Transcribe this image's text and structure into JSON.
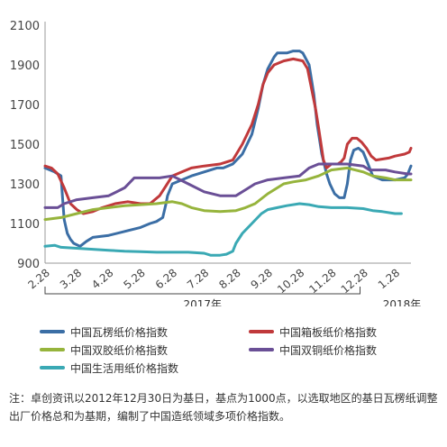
{
  "chart_data": {
    "type": "line",
    "ylim": [
      900,
      2100
    ],
    "yticks": [
      900,
      1100,
      1300,
      1500,
      1700,
      1900,
      2100
    ],
    "x_range": [
      0,
      11.5
    ],
    "x_tick_labels": [
      "2.28",
      "3.28",
      "4.28",
      "5.28",
      "6.28",
      "7.28",
      "8.28",
      "9.28",
      "10.28",
      "11.28",
      "12.28",
      "1.28"
    ],
    "x_tick_positions": [
      0,
      1,
      2,
      3,
      4,
      5,
      6,
      7,
      8,
      9,
      10,
      11
    ],
    "year_labels": [
      {
        "label": "2017年",
        "start": 0,
        "end": 9.9
      },
      {
        "label": "2018年",
        "start": 10.1,
        "end": 11.5
      }
    ],
    "grid": false,
    "legend_position": "bottom",
    "series": [
      {
        "name": "中国瓦楞纸价格指数",
        "color": "#3b6ea5",
        "points": [
          [
            0,
            1380
          ],
          [
            0.3,
            1360
          ],
          [
            0.5,
            1340
          ],
          [
            0.55,
            1230
          ],
          [
            0.6,
            1120
          ],
          [
            0.7,
            1050
          ],
          [
            0.8,
            1020
          ],
          [
            0.9,
            1000
          ],
          [
            1.1,
            985
          ],
          [
            1.3,
            1010
          ],
          [
            1.5,
            1030
          ],
          [
            2,
            1040
          ],
          [
            2.5,
            1060
          ],
          [
            3,
            1080
          ],
          [
            3.3,
            1100
          ],
          [
            3.5,
            1110
          ],
          [
            3.7,
            1130
          ],
          [
            3.8,
            1200
          ],
          [
            3.85,
            1240
          ],
          [
            4,
            1300
          ],
          [
            4.3,
            1320
          ],
          [
            4.6,
            1340
          ],
          [
            5,
            1360
          ],
          [
            5.4,
            1380
          ],
          [
            5.6,
            1380
          ],
          [
            5.9,
            1400
          ],
          [
            6.2,
            1450
          ],
          [
            6.5,
            1550
          ],
          [
            6.7,
            1680
          ],
          [
            6.85,
            1800
          ],
          [
            7,
            1880
          ],
          [
            7.2,
            1940
          ],
          [
            7.3,
            1960
          ],
          [
            7.6,
            1960
          ],
          [
            7.8,
            1970
          ],
          [
            8,
            1970
          ],
          [
            8.1,
            1960
          ],
          [
            8.3,
            1900
          ],
          [
            8.45,
            1750
          ],
          [
            8.55,
            1600
          ],
          [
            8.7,
            1450
          ],
          [
            8.85,
            1350
          ],
          [
            8.95,
            1300
          ],
          [
            9.1,
            1250
          ],
          [
            9.25,
            1230
          ],
          [
            9.4,
            1230
          ],
          [
            9.5,
            1300
          ],
          [
            9.6,
            1420
          ],
          [
            9.7,
            1470
          ],
          [
            9.85,
            1480
          ],
          [
            10,
            1460
          ],
          [
            10.1,
            1420
          ],
          [
            10.3,
            1340
          ],
          [
            10.6,
            1320
          ],
          [
            11,
            1320
          ],
          [
            11.3,
            1330
          ],
          [
            11.4,
            1350
          ],
          [
            11.5,
            1390
          ]
        ]
      },
      {
        "name": "中国箱板纸价格指数",
        "color": "#c0393b",
        "points": [
          [
            0,
            1390
          ],
          [
            0.2,
            1380
          ],
          [
            0.4,
            1350
          ],
          [
            0.6,
            1280
          ],
          [
            0.8,
            1200
          ],
          [
            1,
            1170
          ],
          [
            1.2,
            1150
          ],
          [
            1.5,
            1160
          ],
          [
            1.8,
            1180
          ],
          [
            2.2,
            1200
          ],
          [
            2.6,
            1210
          ],
          [
            3,
            1200
          ],
          [
            3.3,
            1200
          ],
          [
            3.6,
            1240
          ],
          [
            3.8,
            1290
          ],
          [
            4,
            1340
          ],
          [
            4.3,
            1360
          ],
          [
            4.6,
            1380
          ],
          [
            5,
            1390
          ],
          [
            5.5,
            1400
          ],
          [
            5.9,
            1420
          ],
          [
            6.2,
            1500
          ],
          [
            6.5,
            1600
          ],
          [
            6.7,
            1700
          ],
          [
            6.85,
            1800
          ],
          [
            7,
            1860
          ],
          [
            7.2,
            1900
          ],
          [
            7.5,
            1920
          ],
          [
            7.8,
            1930
          ],
          [
            8.1,
            1920
          ],
          [
            8.25,
            1880
          ],
          [
            8.35,
            1800
          ],
          [
            8.5,
            1680
          ],
          [
            8.6,
            1580
          ],
          [
            8.75,
            1420
          ],
          [
            8.85,
            1380
          ],
          [
            9,
            1400
          ],
          [
            9.2,
            1400
          ],
          [
            9.3,
            1410
          ],
          [
            9.4,
            1430
          ],
          [
            9.5,
            1500
          ],
          [
            9.65,
            1530
          ],
          [
            9.8,
            1530
          ],
          [
            9.95,
            1510
          ],
          [
            10.1,
            1480
          ],
          [
            10.25,
            1440
          ],
          [
            10.4,
            1420
          ],
          [
            10.8,
            1430
          ],
          [
            11,
            1440
          ],
          [
            11.3,
            1450
          ],
          [
            11.45,
            1460
          ],
          [
            11.5,
            1480
          ]
        ]
      },
      {
        "name": "中国双胶纸价格指数",
        "color": "#96b43c",
        "points": [
          [
            0,
            1120
          ],
          [
            0.5,
            1130
          ],
          [
            1,
            1150
          ],
          [
            1.5,
            1170
          ],
          [
            2,
            1180
          ],
          [
            2.5,
            1190
          ],
          [
            3,
            1195
          ],
          [
            3.5,
            1200
          ],
          [
            4,
            1210
          ],
          [
            4.3,
            1200
          ],
          [
            4.6,
            1180
          ],
          [
            5,
            1165
          ],
          [
            5.5,
            1160
          ],
          [
            6,
            1165
          ],
          [
            6.3,
            1180
          ],
          [
            6.6,
            1200
          ],
          [
            7,
            1250
          ],
          [
            7.5,
            1300
          ],
          [
            7.8,
            1310
          ],
          [
            8.2,
            1320
          ],
          [
            8.6,
            1340
          ],
          [
            9,
            1370
          ],
          [
            9.5,
            1380
          ],
          [
            10,
            1360
          ],
          [
            10.3,
            1340
          ],
          [
            10.7,
            1330
          ],
          [
            11,
            1320
          ],
          [
            11.5,
            1320
          ]
        ]
      },
      {
        "name": "中国双铜纸价格指数",
        "color": "#6a4f96",
        "points": [
          [
            0,
            1180
          ],
          [
            0.4,
            1180
          ],
          [
            0.6,
            1200
          ],
          [
            1,
            1220
          ],
          [
            1.5,
            1230
          ],
          [
            2,
            1240
          ],
          [
            2.5,
            1280
          ],
          [
            2.8,
            1330
          ],
          [
            3.2,
            1330
          ],
          [
            3.6,
            1330
          ],
          [
            4,
            1340
          ],
          [
            4.5,
            1300
          ],
          [
            5,
            1260
          ],
          [
            5.5,
            1240
          ],
          [
            6,
            1240
          ],
          [
            6.3,
            1270
          ],
          [
            6.6,
            1300
          ],
          [
            7,
            1320
          ],
          [
            7.5,
            1330
          ],
          [
            8,
            1340
          ],
          [
            8.3,
            1380
          ],
          [
            8.6,
            1400
          ],
          [
            9,
            1400
          ],
          [
            9.5,
            1400
          ],
          [
            10,
            1390
          ],
          [
            10.2,
            1370
          ],
          [
            10.7,
            1370
          ],
          [
            11,
            1360
          ],
          [
            11.4,
            1350
          ],
          [
            11.5,
            1350
          ]
        ]
      },
      {
        "name": "中国生活用纸价格指数",
        "color": "#3aa9b4",
        "points": [
          [
            0,
            985
          ],
          [
            0.3,
            990
          ],
          [
            0.5,
            980
          ],
          [
            1,
            975
          ],
          [
            1.5,
            970
          ],
          [
            2,
            965
          ],
          [
            2.5,
            960
          ],
          [
            3,
            958
          ],
          [
            3.5,
            955
          ],
          [
            4,
            955
          ],
          [
            4.5,
            955
          ],
          [
            5,
            950
          ],
          [
            5.2,
            940
          ],
          [
            5.5,
            940
          ],
          [
            5.7,
            945
          ],
          [
            5.9,
            960
          ],
          [
            6,
            1000
          ],
          [
            6.2,
            1050
          ],
          [
            6.5,
            1100
          ],
          [
            6.8,
            1150
          ],
          [
            7,
            1170
          ],
          [
            7.3,
            1180
          ],
          [
            7.6,
            1190
          ],
          [
            8,
            1200
          ],
          [
            8.3,
            1195
          ],
          [
            8.6,
            1185
          ],
          [
            9,
            1180
          ],
          [
            9.5,
            1180
          ],
          [
            10,
            1175
          ],
          [
            10.3,
            1165
          ],
          [
            10.6,
            1160
          ],
          [
            11,
            1150
          ],
          [
            11.2,
            1150
          ]
        ]
      }
    ]
  },
  "note": "注：卓创资讯以2012年12月30日为基日，基点为1000点，以选取地区的基日瓦楞纸调整出厂价格总和为基期，编制了中国造纸领域多项价格指数。"
}
